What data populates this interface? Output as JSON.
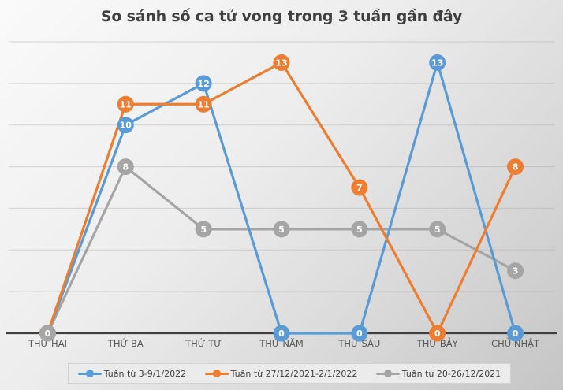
{
  "chart_data": {
    "type": "line",
    "title": "So sánh số ca tử vong trong 3 tuần gần đây",
    "categories": [
      "THỨ HAI",
      "THỨ BA",
      "THỨ TƯ",
      "THỨ NĂM",
      "THỨ SÁU",
      "THỨ BẢY",
      "CHỦ NHẬT"
    ],
    "series": [
      {
        "name": "Tuần từ 3-9/1/2022",
        "color": "#5B9BD5",
        "values": [
          0,
          10,
          12,
          0,
          0,
          13,
          0
        ]
      },
      {
        "name": "Tuần từ 27/12/2021-2/1/2022",
        "color": "#ED7D31",
        "values": [
          0,
          11,
          11,
          13,
          7,
          0,
          8
        ]
      },
      {
        "name": "Tuần từ 20-26/12/2021",
        "color": "#A5A5A5",
        "values": [
          0,
          8,
          5,
          5,
          5,
          5,
          3
        ]
      }
    ],
    "xlabel": "",
    "ylabel": "",
    "ylim": [
      0,
      14
    ],
    "y_grid_step": 2,
    "grid": true,
    "y_axis_labels_visible": false,
    "legend_position": "bottom",
    "data_labels": "on-marker"
  },
  "colors": {
    "series_blue": "#5B9BD5",
    "series_orange": "#ED7D31",
    "series_gray": "#A5A5A5",
    "gridline": "#a8a8a8",
    "axis_line": "#3f3f3f",
    "title_text": "#3f3f3f",
    "axis_label_text": "#595959",
    "data_label_text": "#ffffff",
    "legend_bg": "#ebebeb",
    "legend_border": "#d2d2d2"
  }
}
